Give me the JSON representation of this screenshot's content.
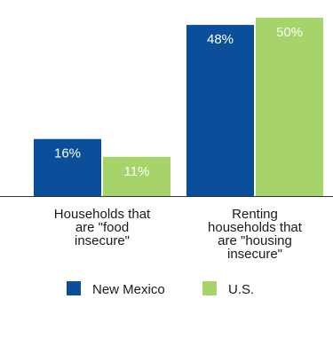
{
  "colors": {
    "new_mexico": "#0b4f9a",
    "us": "#a6d46b",
    "axis": "#333333"
  },
  "chart_data": {
    "type": "bar",
    "categories": [
      [
        "Households that",
        "are \"food",
        "insecure\""
      ],
      [
        "Renting",
        "households that",
        "are \"housing",
        "insecure\""
      ]
    ],
    "series": [
      {
        "name": "New Mexico",
        "values": [
          16,
          48
        ],
        "labels": [
          "16%",
          "48%"
        ]
      },
      {
        "name": "U.S.",
        "values": [
          11,
          50
        ],
        "labels": [
          "11%",
          "50%"
        ]
      }
    ],
    "ylim": [
      0,
      52
    ],
    "grid": false,
    "legend": "bottom"
  }
}
